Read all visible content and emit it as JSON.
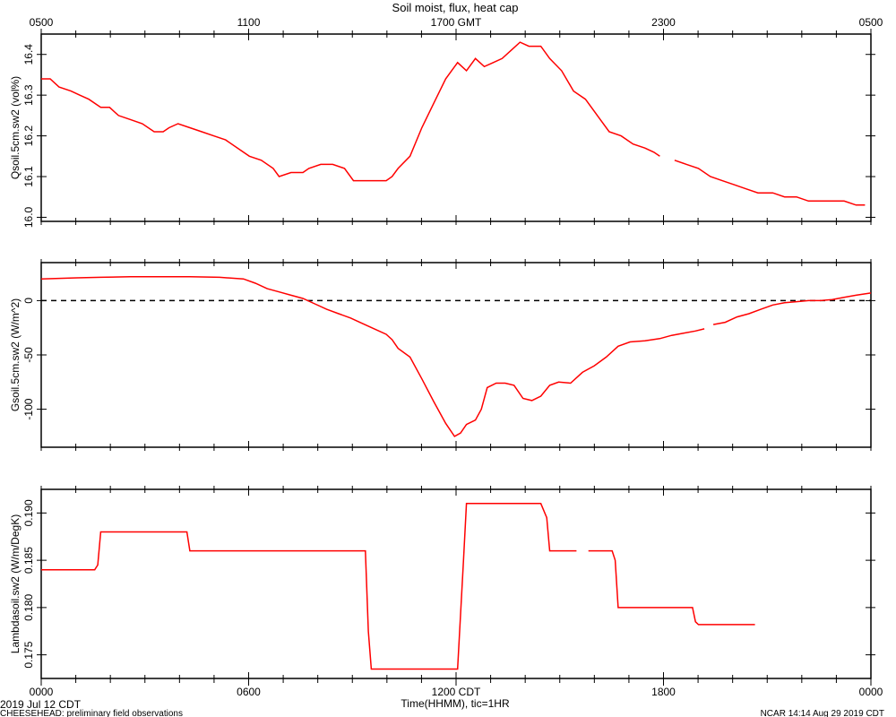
{
  "chart_data": [
    {
      "type": "line",
      "title": "Soil moist, flux, heat cap",
      "ylabel": "Qsoil.5cm.sw2 (vol%)",
      "ylim": [
        15.99,
        16.45
      ],
      "yticks": [
        16.0,
        16.1,
        16.2,
        16.3,
        16.4
      ],
      "ytick_labels": [
        "16.0",
        "16.1",
        "16.2",
        "16.3",
        "16.4"
      ],
      "top_axis_ticks": [
        {
          "hour": 0,
          "label": "0500"
        },
        {
          "hour": 6,
          "label": "1100"
        },
        {
          "hour": 12,
          "label": "1700 GMT"
        },
        {
          "hour": 18,
          "label": "2300"
        },
        {
          "hour": 24,
          "label": "0500"
        }
      ],
      "color": "#ff0000",
      "series": [
        {
          "segments": [
            [
              [
                0,
                16.34
              ],
              [
                0.3,
                16.34
              ],
              [
                0.6,
                16.32
              ],
              [
                1.0,
                16.31
              ],
              [
                1.3,
                16.3
              ],
              [
                1.6,
                16.29
              ],
              [
                2.0,
                16.27
              ],
              [
                2.3,
                16.27
              ],
              [
                2.6,
                16.25
              ],
              [
                3.0,
                16.24
              ],
              [
                3.4,
                16.23
              ],
              [
                3.8,
                16.21
              ],
              [
                4.1,
                16.21
              ],
              [
                4.3,
                16.22
              ],
              [
                4.6,
                16.23
              ],
              [
                5.0,
                16.22
              ],
              [
                5.4,
                16.21
              ],
              [
                5.8,
                16.2
              ],
              [
                6.2,
                16.19
              ],
              [
                6.6,
                16.17
              ],
              [
                7.0,
                16.15
              ],
              [
                7.4,
                16.14
              ],
              [
                7.8,
                16.12
              ],
              [
                8.0,
                16.1
              ],
              [
                8.4,
                16.11
              ],
              [
                8.8,
                16.11
              ],
              [
                9.0,
                16.12
              ],
              [
                9.4,
                16.13
              ],
              [
                9.8,
                16.13
              ],
              [
                10.2,
                16.12
              ],
              [
                10.5,
                16.09
              ],
              [
                10.8,
                16.09
              ],
              [
                11.2,
                16.09
              ],
              [
                11.6,
                16.09
              ],
              [
                11.8,
                16.1
              ],
              [
                12.0,
                16.12
              ],
              [
                12.4,
                16.15
              ],
              [
                12.8,
                16.22
              ],
              [
                13.2,
                16.28
              ],
              [
                13.6,
                16.34
              ],
              [
                13.8,
                16.36
              ],
              [
                14.0,
                16.38
              ],
              [
                14.3,
                16.36
              ],
              [
                14.6,
                16.39
              ],
              [
                14.9,
                16.37
              ],
              [
                15.2,
                16.38
              ],
              [
                15.5,
                16.39
              ],
              [
                15.8,
                16.41
              ],
              [
                16.1,
                16.43
              ],
              [
                16.4,
                16.42
              ],
              [
                16.8,
                16.42
              ],
              [
                17.1,
                16.39
              ],
              [
                17.5,
                16.36
              ],
              [
                17.9,
                16.31
              ],
              [
                18.3,
                16.29
              ],
              [
                18.7,
                16.25
              ],
              [
                19.1,
                16.21
              ],
              [
                19.5,
                16.2
              ],
              [
                19.9,
                16.18
              ],
              [
                20.3,
                16.17
              ],
              [
                20.6,
                16.16
              ],
              [
                20.8,
                16.15
              ]
            ],
            [
              [
                21.3,
                16.14
              ],
              [
                21.7,
                16.13
              ],
              [
                22.1,
                16.12
              ],
              [
                22.5,
                16.1
              ],
              [
                22.9,
                16.09
              ],
              [
                23.3,
                16.08
              ],
              [
                23.7,
                16.07
              ],
              [
                24.1,
                16.06
              ],
              [
                24.6,
                16.06
              ],
              [
                25.0,
                16.05
              ],
              [
                25.4,
                16.05
              ],
              [
                25.8,
                16.04
              ],
              [
                26.2,
                16.04
              ],
              [
                26.6,
                16.04
              ],
              [
                27.0,
                16.04
              ],
              [
                27.4,
                16.03
              ],
              [
                27.7,
                16.03
              ]
            ]
          ]
        }
      ]
    },
    {
      "type": "line",
      "ylabel": "Gsoil.5cm.sw2 (W/m^2)",
      "ylim": [
        -135,
        35
      ],
      "yticks": [
        -100,
        -50,
        0
      ],
      "ytick_labels": [
        "-100",
        "-50",
        "0"
      ],
      "zero_line": "dashed",
      "color": "#ff0000",
      "series": [
        {
          "segments": [
            [
              [
                0,
                20
              ],
              [
                0.6,
                20.5
              ],
              [
                1.2,
                21
              ],
              [
                2.0,
                21.5
              ],
              [
                3.0,
                22
              ],
              [
                4.0,
                22
              ],
              [
                5.0,
                22
              ],
              [
                6.0,
                21.5
              ],
              [
                6.8,
                20
              ],
              [
                7.2,
                16
              ],
              [
                7.6,
                11
              ],
              [
                8.0,
                8
              ],
              [
                8.4,
                5
              ],
              [
                8.8,
                2
              ],
              [
                9.2,
                -3
              ],
              [
                9.6,
                -8
              ],
              [
                10.0,
                -12
              ],
              [
                10.4,
                -16
              ],
              [
                10.8,
                -21
              ],
              [
                11.2,
                -26
              ],
              [
                11.6,
                -31
              ],
              [
                11.8,
                -36
              ],
              [
                12.0,
                -44
              ],
              [
                12.4,
                -52
              ],
              [
                12.8,
                -72
              ],
              [
                13.2,
                -93
              ],
              [
                13.6,
                -113
              ],
              [
                13.9,
                -125
              ],
              [
                14.1,
                -122
              ],
              [
                14.3,
                -114
              ],
              [
                14.6,
                -110
              ],
              [
                14.8,
                -100
              ],
              [
                15.0,
                -80
              ],
              [
                15.3,
                -76
              ],
              [
                15.6,
                -76
              ],
              [
                15.9,
                -78
              ],
              [
                16.2,
                -90
              ],
              [
                16.5,
                -92
              ],
              [
                16.8,
                -88
              ],
              [
                17.1,
                -78
              ],
              [
                17.4,
                -75
              ],
              [
                17.8,
                -76
              ],
              [
                18.2,
                -66
              ],
              [
                18.6,
                -60
              ],
              [
                19.0,
                -52
              ],
              [
                19.4,
                -42
              ],
              [
                19.8,
                -38
              ],
              [
                20.3,
                -37
              ],
              [
                20.8,
                -35
              ],
              [
                21.2,
                -32
              ],
              [
                21.6,
                -30
              ],
              [
                22.0,
                -28
              ],
              [
                22.3,
                -26
              ]
            ],
            [
              [
                22.6,
                -22
              ],
              [
                23.0,
                -20
              ],
              [
                23.4,
                -15
              ],
              [
                23.8,
                -12
              ],
              [
                24.2,
                -8
              ],
              [
                24.6,
                -4
              ],
              [
                25.0,
                -2
              ],
              [
                25.4,
                -1
              ],
              [
                25.8,
                0
              ],
              [
                26.2,
                0
              ],
              [
                26.6,
                1
              ],
              [
                27.0,
                3
              ],
              [
                27.4,
                5
              ],
              [
                27.9,
                7
              ]
            ]
          ]
        }
      ]
    },
    {
      "type": "line",
      "ylabel": "Lambdasoil.sw2 (W/m/DegK)",
      "ylim": [
        0.1725,
        0.1925
      ],
      "yticks": [
        0.175,
        0.18,
        0.185,
        0.19
      ],
      "ytick_labels": [
        "0.175",
        "0.180",
        "0.185",
        "0.190"
      ],
      "bottom_axis_ticks": [
        {
          "hour": 0,
          "label": "0000"
        },
        {
          "hour": 6,
          "label": "0600"
        },
        {
          "hour": 12,
          "label": "1200 CDT"
        },
        {
          "hour": 18,
          "label": "1800"
        },
        {
          "hour": 24,
          "label": "0000"
        }
      ],
      "xlabel": "Time(HHMM), tic=1HR",
      "color": "#ff0000",
      "series": [
        {
          "segments": [
            [
              [
                0,
                0.184
              ],
              [
                1.8,
                0.184
              ],
              [
                1.9,
                0.1845
              ],
              [
                2.0,
                0.188
              ],
              [
                4.9,
                0.188
              ],
              [
                5.0,
                0.186
              ],
              [
                10.9,
                0.186
              ],
              [
                11.0,
                0.1775
              ],
              [
                11.1,
                0.1735
              ],
              [
                13.5,
                0.1735
              ],
              [
                14.0,
                0.1735
              ],
              [
                14.2,
                0.185
              ],
              [
                14.3,
                0.191
              ],
              [
                16.8,
                0.191
              ],
              [
                17.0,
                0.1895
              ],
              [
                17.1,
                0.186
              ],
              [
                18.0,
                0.186
              ]
            ],
            [
              [
                18.4,
                0.186
              ],
              [
                19.2,
                0.186
              ],
              [
                19.3,
                0.185
              ],
              [
                19.4,
                0.18
              ],
              [
                21.9,
                0.18
              ],
              [
                22.0,
                0.1785
              ],
              [
                22.1,
                0.1782
              ],
              [
                23.2,
                0.1782
              ],
              [
                24.0,
                0.1782
              ]
            ]
          ]
        }
      ]
    }
  ],
  "footer": {
    "date": "2019 Jul 12 CDT",
    "project": "CHEESEHEAD: preliminary field observations",
    "stamp": "NCAR 14:14 Aug 29 2019 CDT"
  }
}
